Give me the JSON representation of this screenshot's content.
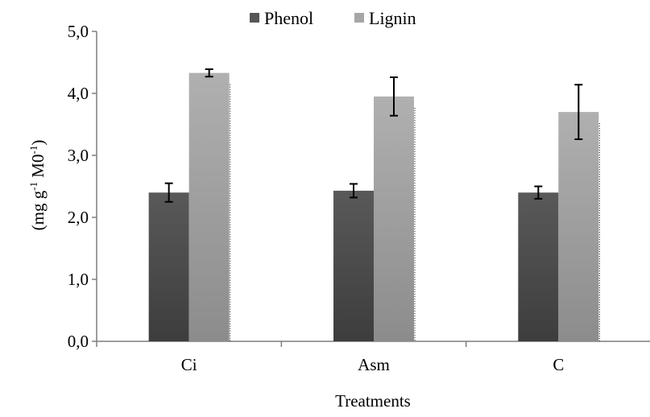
{
  "chart_data": {
    "type": "bar",
    "categories": [
      "Ci",
      "Asm",
      "C"
    ],
    "series": [
      {
        "name": "Phenol",
        "values": [
          2.4,
          2.43,
          2.4
        ],
        "errors": [
          0.15,
          0.11,
          0.1
        ],
        "color": "#565656"
      },
      {
        "name": "Lignin",
        "values": [
          4.33,
          3.95,
          3.7
        ],
        "errors": [
          0.06,
          0.31,
          0.44
        ],
        "color": "#a6a6a6"
      }
    ],
    "ylim": [
      0,
      5
    ],
    "yticks": [
      "0,0",
      "1,0",
      "2,0",
      "3,0",
      "4,0",
      "5,0"
    ],
    "xlabel": "Treatments",
    "ylabel_main": "(mg g",
    "ylabel_sup1": "-1",
    "ylabel_mid": " M0",
    "ylabel_sup2": "-1",
    "ylabel_end": ")",
    "grid": false,
    "legend_position": "top"
  }
}
